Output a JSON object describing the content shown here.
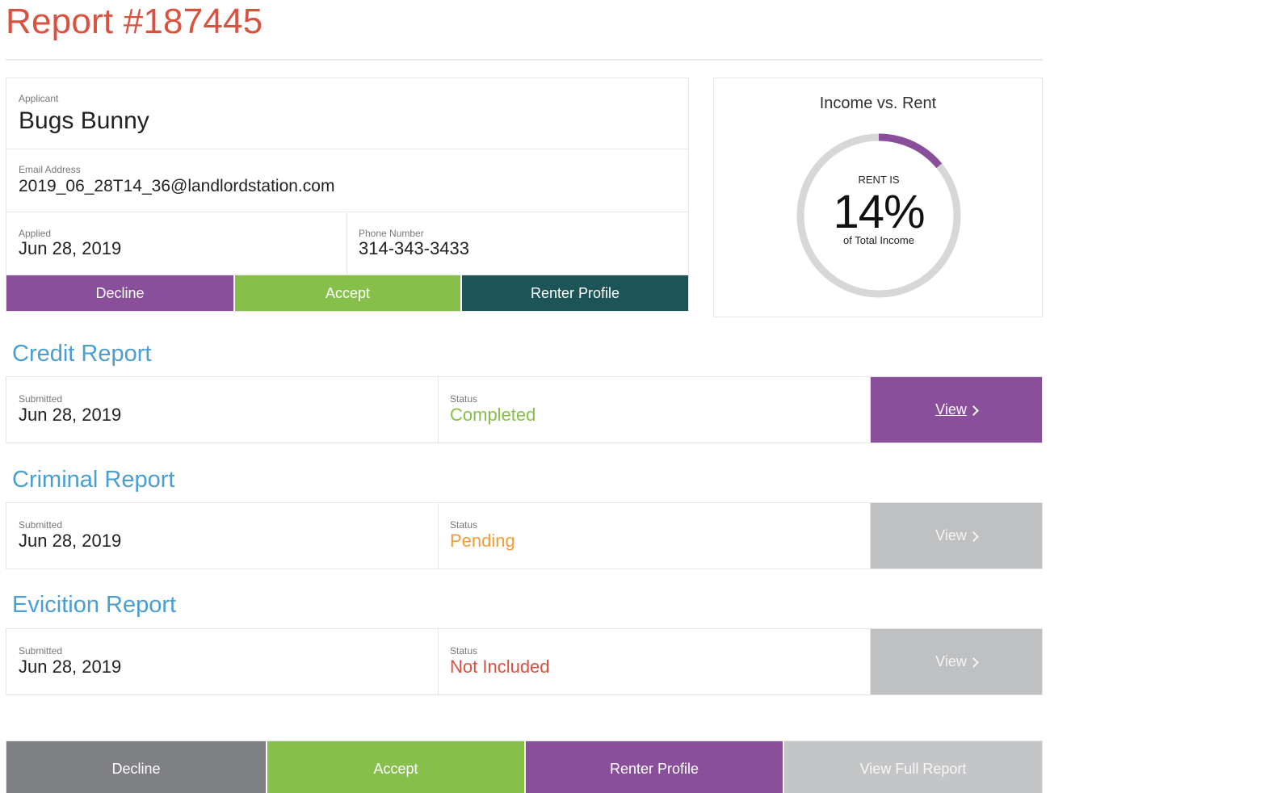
{
  "report": {
    "title": "Report #187445"
  },
  "applicant": {
    "name_label": "Applicant",
    "name": "Bugs Bunny",
    "email_label": "Email Address",
    "email": "2019_06_28T14_36@landlordstation.com",
    "applied_label": "Applied",
    "applied": "Jun 28, 2019",
    "phone_label": "Phone Number",
    "phone": "314-343-3433",
    "actions": {
      "decline": "Decline",
      "accept": "Accept",
      "renter_profile": "Renter Profile"
    }
  },
  "income": {
    "title": "Income vs. Rent",
    "top_text": "RENT IS",
    "percent_text": "14%",
    "percent_value": 14,
    "bottom_text": "of Total Income",
    "colors": {
      "fill": "#8a4f9b",
      "track": "#d7d7d7"
    }
  },
  "reports": [
    {
      "title": "Credit Report",
      "submitted_label": "Submitted",
      "submitted": "Jun 28, 2019",
      "status_label": "Status",
      "status": "Completed",
      "status_color": "#86c04a",
      "view_label": "View",
      "view_enabled": true
    },
    {
      "title": "Criminal Report",
      "submitted_label": "Submitted",
      "submitted": "Jun 28, 2019",
      "status_label": "Status",
      "status": "Pending",
      "status_color": "#f39c33",
      "view_label": "View",
      "view_enabled": false
    },
    {
      "title": "Evicition Report",
      "submitted_label": "Submitted",
      "submitted": "Jun 28, 2019",
      "status_label": "Status",
      "status": "Not Included",
      "status_color": "#d9513f",
      "view_label": "View",
      "view_enabled": false
    }
  ],
  "bottom_actions": {
    "decline": "Decline",
    "accept": "Accept",
    "renter_profile": "Renter Profile",
    "view_full_report": "View Full Report"
  },
  "icons": {
    "view_chevron": "chevron-right-icon"
  }
}
